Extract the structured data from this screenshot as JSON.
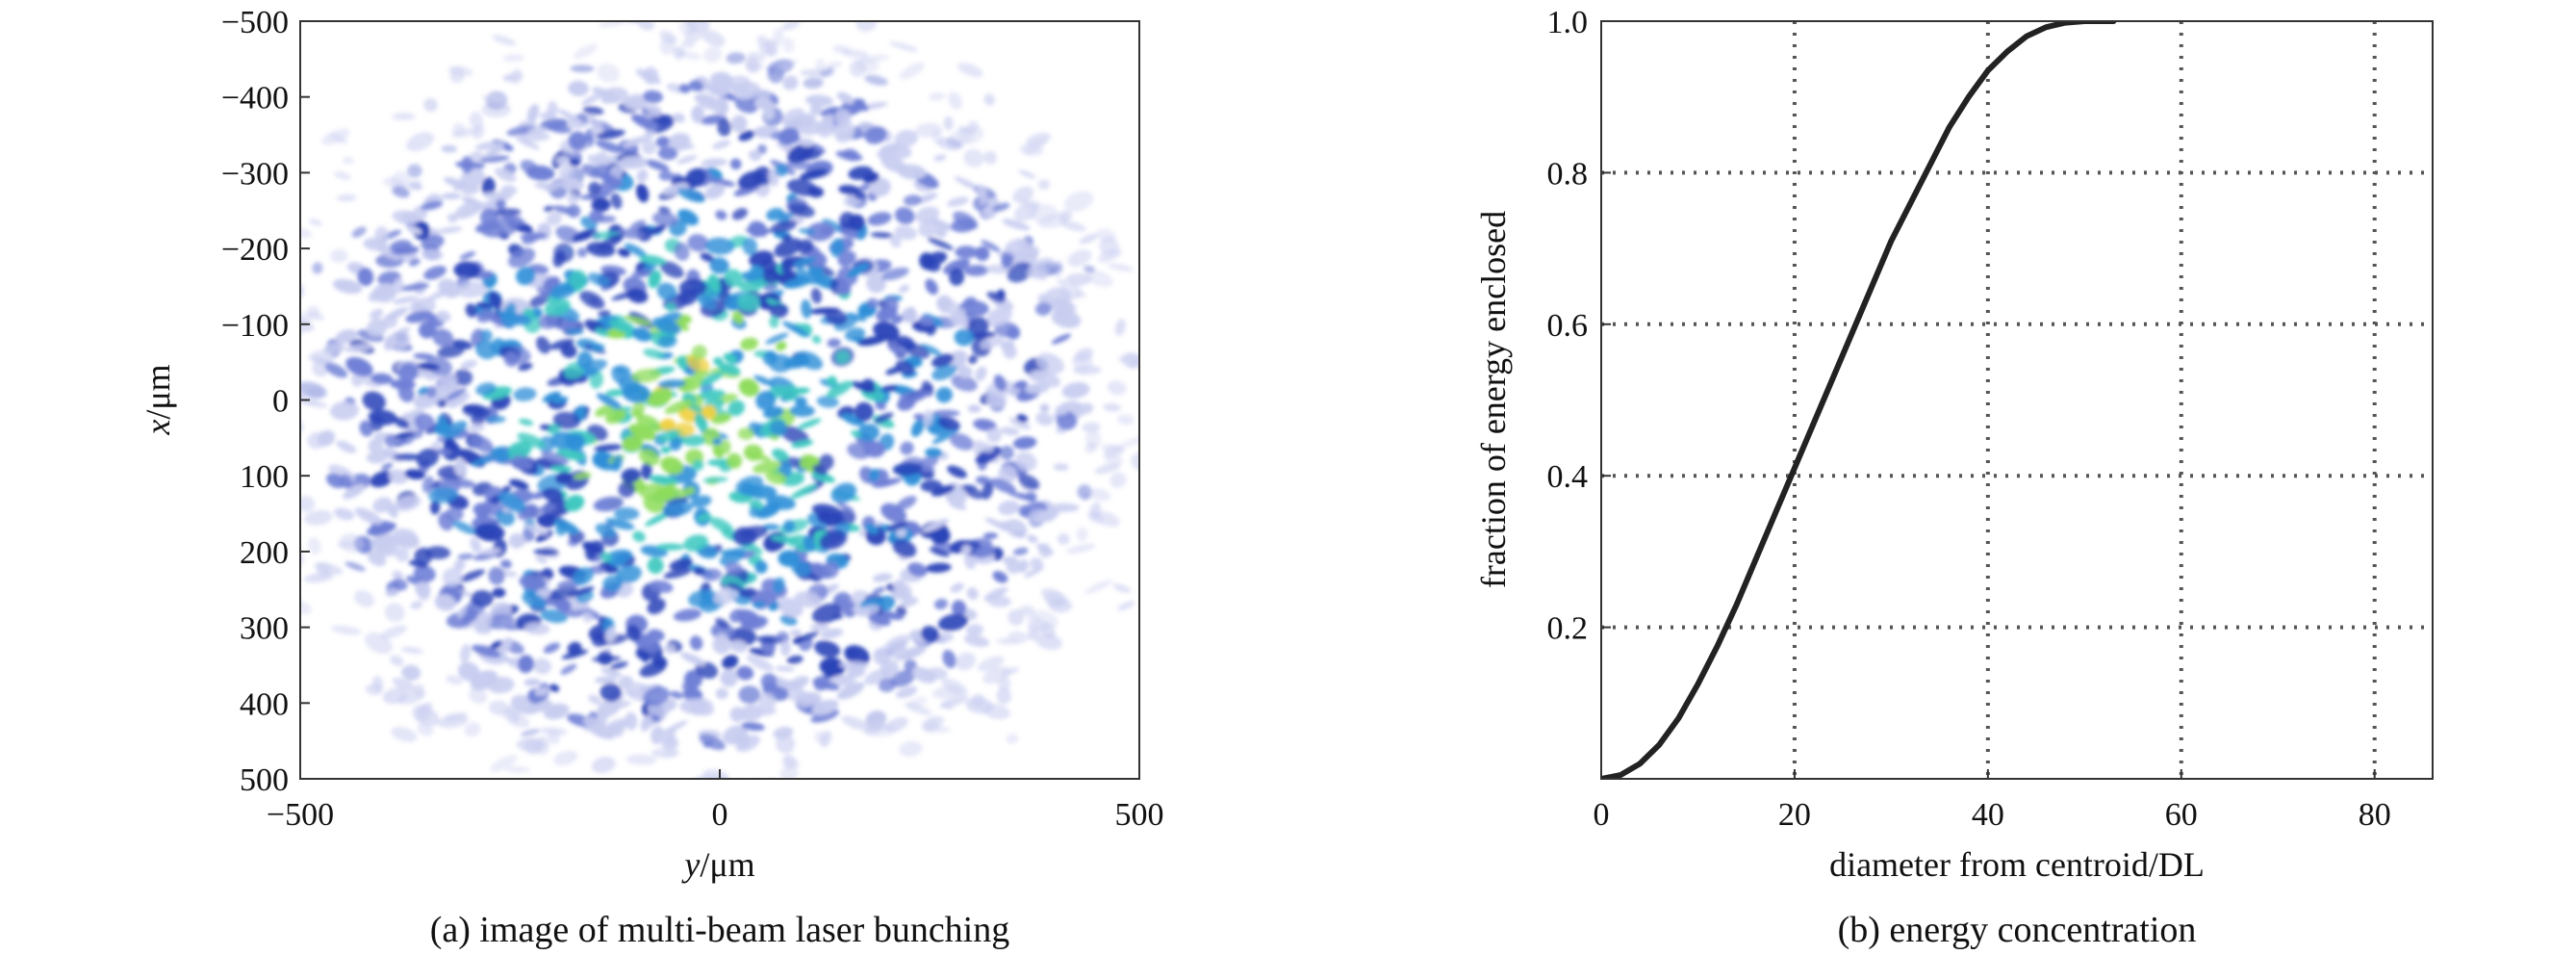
{
  "chart_data": [
    {
      "panel": "a",
      "type": "heatmap",
      "caption": "(a) image of multi-beam laser bunching",
      "xlabel": {
        "italic": "y",
        "unit": "/μm"
      },
      "ylabel": {
        "italic": "x",
        "unit": "/μm"
      },
      "xlim": [
        -500,
        500
      ],
      "ylim": [
        -500,
        500
      ],
      "y_inverted": true,
      "xticks": [
        "−500",
        "0",
        "500"
      ],
      "yticks": [
        "−500",
        "−400",
        "−300",
        "−200",
        "−100",
        "0",
        "100",
        "200",
        "300",
        "400",
        "500"
      ],
      "colormap": [
        "#ffffff",
        "#c8cdf0",
        "#6f7fd6",
        "#2a44b8",
        "#2f8fd8",
        "#3ec8c0",
        "#8fdc5c",
        "#f0d040"
      ],
      "grid": false
    },
    {
      "panel": "b",
      "type": "line",
      "caption": "(b) energy concentration",
      "xlabel": "diameter from centroid/DL",
      "ylabel": "fraction of energy enclosed",
      "xlim": [
        0,
        86
      ],
      "ylim": [
        0,
        1.0
      ],
      "xticks": [
        "0",
        "20",
        "40",
        "60",
        "80"
      ],
      "yticks": [
        "0.2",
        "0.4",
        "0.6",
        "0.8",
        "1.0"
      ],
      "grid": true,
      "series": [
        {
          "x": [
            0,
            2,
            4,
            6,
            8,
            10,
            12,
            14,
            16,
            18,
            20,
            22,
            24,
            26,
            28,
            30,
            32,
            34,
            36,
            38,
            40,
            42,
            44,
            46,
            48,
            50,
            52,
            53
          ],
          "y": [
            0.0,
            0.005,
            0.02,
            0.045,
            0.08,
            0.125,
            0.175,
            0.23,
            0.29,
            0.35,
            0.41,
            0.47,
            0.53,
            0.59,
            0.65,
            0.71,
            0.76,
            0.81,
            0.86,
            0.9,
            0.935,
            0.96,
            0.98,
            0.992,
            0.998,
            1.0,
            1.0,
            1.0
          ],
          "color": "#222222"
        }
      ]
    }
  ]
}
